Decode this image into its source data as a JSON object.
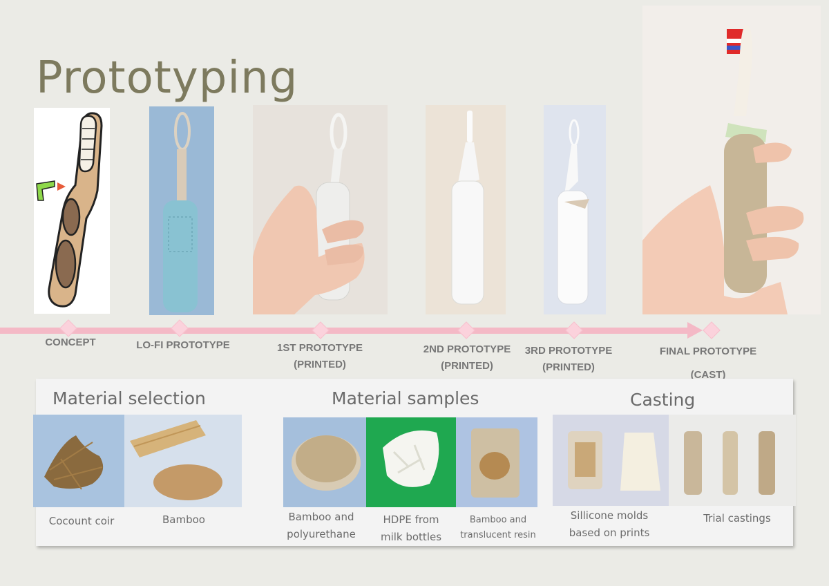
{
  "title": "Prototyping",
  "timeline": {
    "stages": [
      {
        "line1": "CONCEPT",
        "line2": ""
      },
      {
        "line1": "LO-FI PROTOTYPE",
        "line2": ""
      },
      {
        "line1": "1ST PROTOTYPE",
        "line2": "(PRINTED)"
      },
      {
        "line1": "2ND PROTOTYPE",
        "line2": "(PRINTED)"
      },
      {
        "line1": "3RD PROTOTYPE",
        "line2": "(PRINTED)"
      },
      {
        "line1": "FINAL PROTOTYPE",
        "line2": "(CAST)"
      }
    ]
  },
  "sections": {
    "material_selection": {
      "title": "Material selection",
      "captions": [
        "Cocount coir",
        "Bamboo"
      ]
    },
    "material_samples": {
      "title": "Material samples",
      "captions": [
        {
          "line1": "Bamboo and",
          "line2": "polyurethane"
        },
        {
          "line1": "HDPE from",
          "line2": "milk bottles"
        },
        {
          "line1": "Bamboo and",
          "line2": "translucent resin"
        }
      ]
    },
    "casting": {
      "title": "Casting",
      "captions": [
        {
          "line1": "Sillicone molds",
          "line2": "based on prints"
        },
        {
          "line1": "Trial castings",
          "line2": ""
        }
      ]
    }
  },
  "colors": {
    "timeline": "#f4b9c6",
    "title": "#7d7a5e"
  }
}
